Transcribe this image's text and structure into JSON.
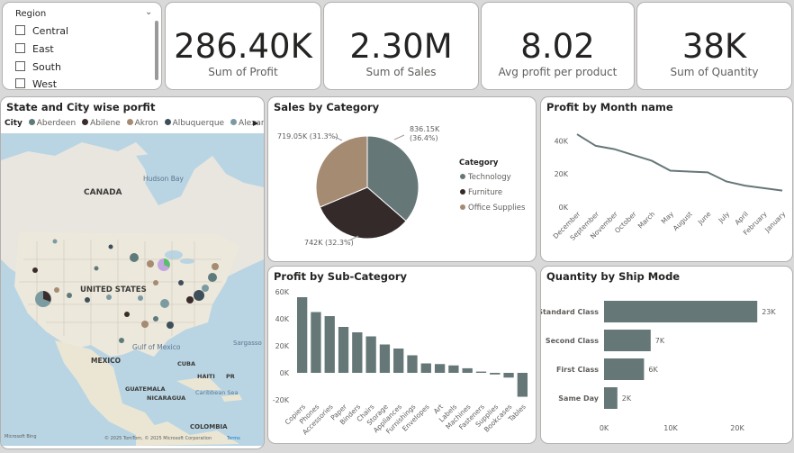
{
  "slicer": {
    "title": "Region",
    "items": [
      "Central",
      "East",
      "South",
      "West"
    ]
  },
  "kpis": [
    {
      "value": "286.40K",
      "label": "Sum of Profit"
    },
    {
      "value": "2.30M",
      "label": "Sum of Sales"
    },
    {
      "value": "8.02",
      "label": "Avg profit per product"
    },
    {
      "value": "38K",
      "label": "Sum of Quantity"
    }
  ],
  "map": {
    "title": "State and City wise porfit",
    "legend_title": "City",
    "legend_items": [
      {
        "name": "Aberdeen",
        "color": "#5f7a7b"
      },
      {
        "name": "Abilene",
        "color": "#3b2c2c"
      },
      {
        "name": "Akron",
        "color": "#a68b73"
      },
      {
        "name": "Albuquerque",
        "color": "#3f4f5a"
      },
      {
        "name": "Alexandria",
        "color": "#7c9ba1"
      }
    ],
    "labels": {
      "canada": "CANADA",
      "us": "UNITED STATES",
      "mexico": "MEXICO",
      "hudson": "Hudson Bay",
      "gulf": "Gulf of Mexico",
      "sargasso": "Sargasso",
      "cuba": "CUBA",
      "haiti": "HAITI",
      "pr": "PR",
      "guatemala": "GUATEMALA",
      "nicaragua": "NICARAGUA",
      "caribbean": "Caribbean Sea",
      "colombia": "COLOMBIA",
      "bing": "Microsoft Bing",
      "copyright": "© 2025 TomTom, © 2025 Microsoft Corporation",
      "terms": "Terms"
    }
  },
  "colors": {
    "primary": "#667778",
    "dark": "#342a29",
    "tan": "#a68b73"
  },
  "charts": [
    {
      "type": "pie",
      "title": "Sales by Category",
      "legend_title": "Category",
      "categories": [
        "Technology",
        "Furniture",
        "Office Supplies"
      ],
      "values": [
        836.15,
        742,
        719.05
      ],
      "labels": [
        "836.15K (36.4%)",
        "742K (32.3%)",
        "719.05K (31.3%)"
      ],
      "colors": [
        "#667778",
        "#342a29",
        "#a68b73"
      ]
    },
    {
      "type": "line",
      "title": "Profit by Month name",
      "categories": [
        "December",
        "September",
        "November",
        "October",
        "March",
        "May",
        "August",
        "June",
        "July",
        "April",
        "February",
        "January"
      ],
      "values": [
        44000,
        37000,
        35000,
        31500,
        28000,
        22000,
        21500,
        21000,
        15500,
        13000,
        11500,
        10000
      ],
      "yticks": [
        "40K",
        "20K",
        "0K"
      ],
      "ylim": [
        0,
        50000
      ]
    },
    {
      "type": "bar",
      "title": "Profit by Sub-Category",
      "categories": [
        "Copiers",
        "Phones",
        "Accessories",
        "Paper",
        "Binders",
        "Chairs",
        "Storage",
        "Appliances",
        "Furnishings",
        "Envelopes",
        "Art",
        "Labels",
        "Machines",
        "Fasteners",
        "Supplies",
        "Bookcases",
        "Tables"
      ],
      "values": [
        56000,
        45000,
        42000,
        34000,
        30000,
        27000,
        21000,
        18000,
        13000,
        7000,
        6500,
        5500,
        3400,
        950,
        -1200,
        -3500,
        -17700
      ],
      "yticks": [
        "60K",
        "40K",
        "20K",
        "0K",
        "-20K"
      ],
      "ylim": [
        -20000,
        60000
      ]
    },
    {
      "type": "bar",
      "title": "Quantity by Ship Mode",
      "categories": [
        "Standard Class",
        "Second Class",
        "First Class",
        "Same Day"
      ],
      "values": [
        23000,
        7000,
        6000,
        2000
      ],
      "labels": [
        "23K",
        "7K",
        "6K",
        "2K"
      ],
      "xticks": [
        "0K",
        "10K",
        "20K"
      ],
      "xlim": [
        0,
        25000
      ]
    }
  ]
}
